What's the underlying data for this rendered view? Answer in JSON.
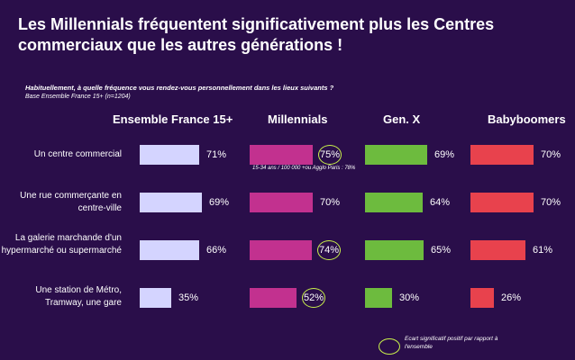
{
  "title": "Les Millennials fréquentent significativement plus les Centres commerciaux que les autres générations !",
  "question": "Habituellement, à quelle fréquence vous rendez-vous personnellement dans les lieux suivants ?",
  "base": "Base Ensemble France 15+ (n=1204)",
  "note": "15-34 ans / 100 000 +ou Agglo Paris : 78%",
  "legend": "Ecart significatif positif par rapport à l'ensemble",
  "colors": {
    "ensemble": "#d4d4ff",
    "millennials": "#c2318f",
    "genx": "#6dbb3e",
    "babyboomers": "#e8424d",
    "ring": "#c8f04a"
  },
  "chart_data": {
    "type": "bar",
    "title": "Les Millennials fréquentent significativement plus les Centres commerciaux que les autres générations !",
    "categories": [
      "Un centre commercial",
      "Une rue commerçante en centre-ville",
      "La galerie marchande d'un hypermarché ou supermarché",
      "Une station de Métro, Tramway, une gare"
    ],
    "series": [
      {
        "name": "Ensemble France 15+",
        "values": [
          71,
          69,
          66,
          35
        ],
        "labels": [
          "71%",
          "69%",
          "66%",
          "35%"
        ],
        "significant": [
          false,
          false,
          false,
          false
        ]
      },
      {
        "name": "Millennials",
        "values": [
          75,
          70,
          74,
          52
        ],
        "labels": [
          "75%",
          "70%",
          "74%",
          "52%"
        ],
        "significant": [
          true,
          false,
          true,
          true
        ]
      },
      {
        "name": "Gen. X",
        "values": [
          69,
          64,
          65,
          30
        ],
        "labels": [
          "69%",
          "64%",
          "65%",
          "30%"
        ],
        "significant": [
          false,
          false,
          false,
          false
        ]
      },
      {
        "name": "Babyboomers",
        "values": [
          70,
          70,
          61,
          26
        ],
        "labels": [
          "70%",
          "70%",
          "61%",
          "26%"
        ],
        "significant": [
          false,
          false,
          false,
          false
        ]
      }
    ],
    "unit": "%",
    "ylim": [
      0,
      100
    ]
  }
}
